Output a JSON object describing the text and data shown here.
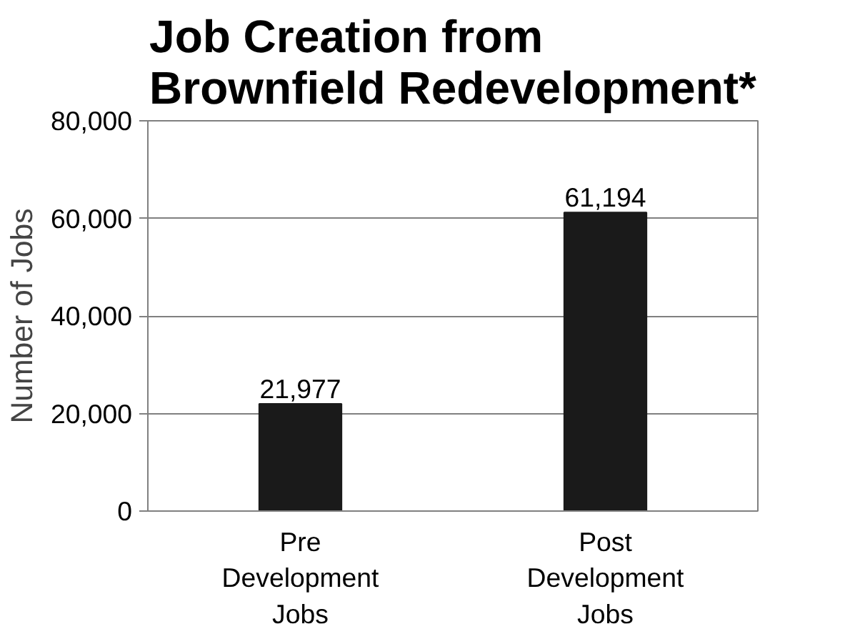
{
  "chart_data": {
    "type": "bar",
    "title": "Job Creation from\nBrownfield Redevelopment*",
    "ylabel": "Number of Jobs",
    "categories": [
      "Pre Development Jobs",
      "Post Development Jobs"
    ],
    "values": [
      21977,
      61194
    ],
    "value_labels": [
      "21,977",
      "61,194"
    ],
    "color": "#1a1a1a",
    "ylim": [
      0,
      80000
    ],
    "yticks": [
      {
        "value": 0,
        "label": "0"
      },
      {
        "value": 20000,
        "label": "20,000"
      },
      {
        "value": 40000,
        "label": "40,000"
      },
      {
        "value": 60000,
        "label": "60,000"
      },
      {
        "value": 80000,
        "label": "80,000"
      }
    ],
    "grid": "y"
  }
}
